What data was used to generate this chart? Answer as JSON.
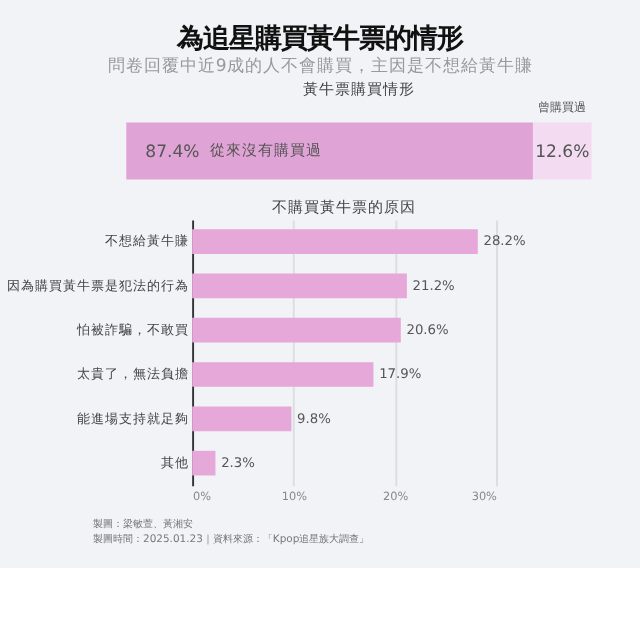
{
  "chart_data": [
    {
      "type": "other",
      "title": "為追星購買黃牛票的情形",
      "subtitle": "問卷回覆中近9成的人不會購買，主因是不想給黃牛賺"
    },
    {
      "type": "bar",
      "title": "黃牛票購買情形",
      "orientation": "horizontal",
      "stacked": true,
      "categories": [
        null
      ],
      "series": [
        {
          "name": "從來沒有購買過",
          "color": "#e0a3d6",
          "values": [
            87.4
          ],
          "value_labels": [
            "87.4%"
          ]
        },
        {
          "name": "曾購買過",
          "color": "#f3dcf2",
          "values": [
            12.6
          ],
          "value_labels": [
            "12.6%"
          ]
        }
      ]
    },
    {
      "type": "bar",
      "title": "不購買黃牛票的原因",
      "orientation": "horizontal",
      "categories": [
        "不想給黃牛賺",
        "因為購買黃牛票是犯法的行為",
        "怕被詐騙，不敢買",
        "太貴了，無法負擔",
        "能進場支持就足夠",
        "其他"
      ],
      "values": [
        28.2,
        21.2,
        20.6,
        17.9,
        9.8,
        2.3
      ],
      "color": "#e6a7d9",
      "value_labels": [
        "28.2%",
        "21.2%",
        "20.6%",
        "17.9%",
        "9.8%",
        "2.3%"
      ],
      "xlim": [
        0,
        30
      ],
      "xticks": [
        {
          "value": 0,
          "label": "0%"
        },
        {
          "value": 10,
          "label": "10%"
        },
        {
          "value": 20,
          "label": "20%"
        },
        {
          "value": 30,
          "label": "30%"
        }
      ],
      "grid": "x",
      "annotations": [
        "製圖：梁敏萱、黃湘安",
        "製圖時間：2025.01.23｜資料來源：「Kpop追星族大調查」"
      ]
    }
  ]
}
